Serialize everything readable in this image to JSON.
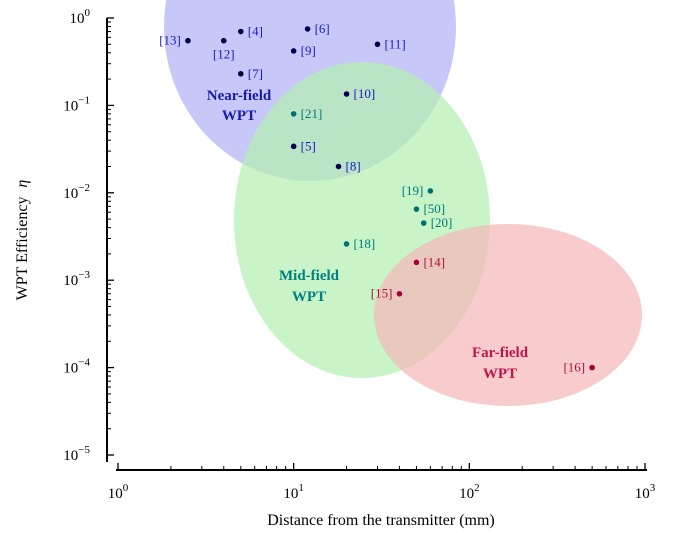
{
  "chart_data": {
    "type": "scatter",
    "xscale": "log",
    "yscale": "log",
    "xlim": [
      1,
      1000
    ],
    "ylim": [
      1e-05,
      1
    ],
    "xlabel": "Distance from the transmitter (mm)",
    "ylabel": "WPT Efficiency",
    "ylabel_symbol": "η",
    "x_ticks": [
      {
        "value": 1,
        "base": "10",
        "exp": "0"
      },
      {
        "value": 10,
        "base": "10",
        "exp": "1"
      },
      {
        "value": 100,
        "base": "10",
        "exp": "2"
      },
      {
        "value": 1000,
        "base": "10",
        "exp": "3"
      }
    ],
    "y_ticks": [
      {
        "value": 1,
        "base": "10",
        "exp": "0"
      },
      {
        "value": 0.1,
        "base": "10",
        "exp": "−1"
      },
      {
        "value": 0.01,
        "base": "10",
        "exp": "−2"
      },
      {
        "value": 0.001,
        "base": "10",
        "exp": "−3"
      },
      {
        "value": 0.0001,
        "base": "10",
        "exp": "−4"
      },
      {
        "value": 1e-05,
        "base": "10",
        "exp": "−5"
      }
    ],
    "regions": [
      {
        "line1": "Near-field",
        "line2": "WPT",
        "fill": "#b3b3f5",
        "text_color": "#1a1aa8"
      },
      {
        "line1": "Mid-field",
        "line2": "WPT",
        "fill": "#b3f0b3",
        "text_color": "#008080"
      },
      {
        "line1": "Far-field",
        "line2": "WPT",
        "fill": "#f5b8b8",
        "text_color": "#c0144c"
      }
    ],
    "series": [
      {
        "color": "#00004d",
        "label_color": "#1a1acc",
        "points": [
          {
            "x": 2.5,
            "y": 0.55,
            "label": "[13]",
            "side": "left"
          },
          {
            "x": 4,
            "y": 0.55,
            "label": "[12]",
            "side": "below"
          },
          {
            "x": 5,
            "y": 0.7,
            "label": "[4]",
            "side": "right"
          },
          {
            "x": 5,
            "y": 0.23,
            "label": "[7]",
            "side": "right"
          },
          {
            "x": 10,
            "y": 0.42,
            "label": "[9]",
            "side": "right"
          },
          {
            "x": 12,
            "y": 0.75,
            "label": "[6]",
            "side": "right"
          },
          {
            "x": 30,
            "y": 0.5,
            "label": "[11]",
            "side": "right"
          },
          {
            "x": 20,
            "y": 0.135,
            "label": "[10]",
            "side": "right"
          },
          {
            "x": 10,
            "y": 0.034,
            "label": "[5]",
            "side": "right"
          },
          {
            "x": 18,
            "y": 0.02,
            "label": "[8]",
            "side": "right"
          }
        ]
      },
      {
        "color": "#007070",
        "label_color": "#007b7b",
        "points": [
          {
            "x": 10,
            "y": 0.08,
            "label": "[21]",
            "side": "right"
          },
          {
            "x": 60,
            "y": 0.0105,
            "label": "[19]",
            "side": "left"
          },
          {
            "x": 50,
            "y": 0.0065,
            "label": "[50]",
            "side": "right"
          },
          {
            "x": 55,
            "y": 0.0045,
            "label": "[20]",
            "side": "right"
          },
          {
            "x": 20,
            "y": 0.0026,
            "label": "[18]",
            "side": "right"
          }
        ]
      },
      {
        "color": "#a8003c",
        "label_color": "#b0103c",
        "points": [
          {
            "x": 50,
            "y": 0.0016,
            "label": "[14]",
            "side": "right"
          },
          {
            "x": 40,
            "y": 0.0007,
            "label": "[15]",
            "side": "left"
          },
          {
            "x": 500,
            "y": 0.0001,
            "label": "[16]",
            "side": "left"
          }
        ]
      }
    ]
  }
}
